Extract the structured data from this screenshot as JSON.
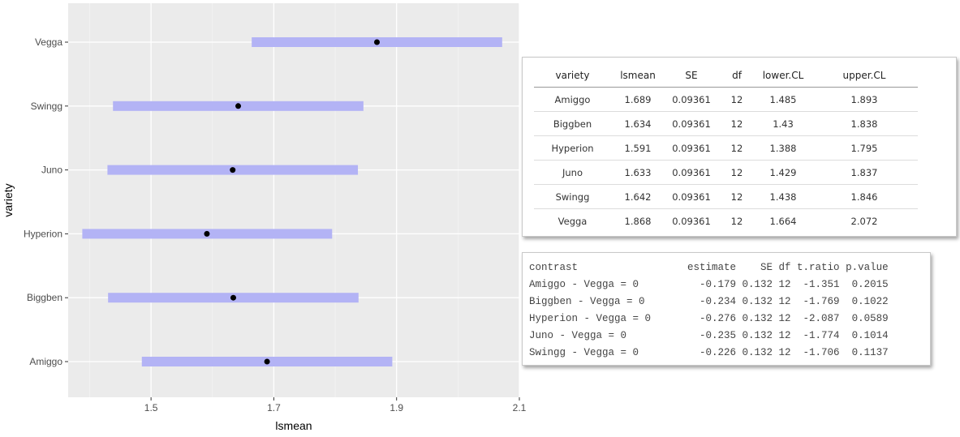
{
  "chart_data": {
    "type": "interval",
    "categories": [
      "Amiggo",
      "Biggben",
      "Hyperion",
      "Juno",
      "Swingg",
      "Vegga"
    ],
    "estimate": [
      1.689,
      1.634,
      1.591,
      1.633,
      1.642,
      1.868
    ],
    "lower": [
      1.485,
      1.43,
      1.388,
      1.429,
      1.438,
      1.664
    ],
    "upper": [
      1.893,
      1.838,
      1.795,
      1.837,
      1.846,
      2.072
    ],
    "x_ticks": [
      "1.5",
      "1.7",
      "1.9",
      "2.1"
    ],
    "xlim": [
      1.365,
      2.1
    ],
    "xlabel": "lsmean",
    "ylabel": "variety",
    "bar_color": "#b3b3f5",
    "point_color": "#000000",
    "panel_bg": "#ebebeb",
    "grid": true
  },
  "lsmeans_table": {
    "headers": [
      "variety",
      "lsmean",
      "SE",
      "df",
      "lower.CL",
      "upper.CL"
    ],
    "rows": [
      [
        "Amiggo",
        "1.689",
        "0.09361",
        "12",
        "1.485",
        "1.893"
      ],
      [
        "Biggben",
        "1.634",
        "0.09361",
        "12",
        "1.43",
        "1.838"
      ],
      [
        "Hyperion",
        "1.591",
        "0.09361",
        "12",
        "1.388",
        "1.795"
      ],
      [
        "Juno",
        "1.633",
        "0.09361",
        "12",
        "1.429",
        "1.837"
      ],
      [
        "Swingg",
        "1.642",
        "0.09361",
        "12",
        "1.438",
        "1.846"
      ],
      [
        "Vegga",
        "1.868",
        "0.09361",
        "12",
        "1.664",
        "2.072"
      ]
    ]
  },
  "contrast_output": {
    "lines": [
      "contrast                  estimate    SE df t.ratio p.value",
      "Amiggo - Vegga = 0          -0.179 0.132 12  -1.351  0.2015",
      "Biggben - Vegga = 0         -0.234 0.132 12  -1.769  0.1022",
      "Hyperion - Vegga = 0        -0.276 0.132 12  -2.087  0.0589",
      "Juno - Vegga = 0            -0.235 0.132 12  -1.774  0.1014",
      "Swingg - Vegga = 0          -0.226 0.132 12  -1.706  0.1137"
    ]
  }
}
